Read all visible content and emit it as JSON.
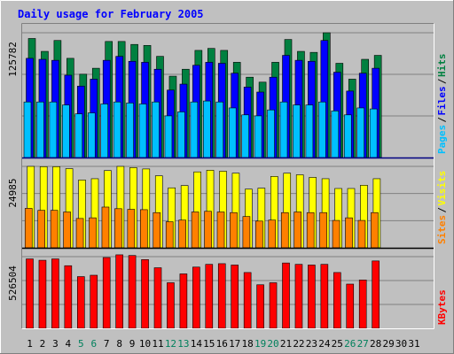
{
  "chart_data": {
    "type": "bar",
    "title": "Daily usage for February 2005",
    "days": [
      "1",
      "2",
      "3",
      "4",
      "5",
      "6",
      "7",
      "8",
      "9",
      "10",
      "11",
      "12",
      "13",
      "14",
      "15",
      "16",
      "17",
      "18",
      "19",
      "20",
      "21",
      "22",
      "23",
      "24",
      "25",
      "26",
      "27",
      "28",
      "29",
      "30",
      "31"
    ],
    "weekend_days": [
      "5",
      "6",
      "12",
      "13",
      "19",
      "20",
      "26",
      "27"
    ],
    "panels": [
      {
        "id": "hits-files-pages",
        "max_label": "125782",
        "ymax": 125782,
        "legend": [
          {
            "name": "Pages",
            "color": "#00c0ff"
          },
          {
            "name": "Files",
            "color": "#0000ff"
          },
          {
            "name": "Hits",
            "color": "#008040"
          }
        ],
        "separator_color": "#000080",
        "series": [
          {
            "name": "Hits",
            "color": "#008040",
            "values": [
              120000,
              107000,
              118000,
              100000,
              84000,
              90000,
              117000,
              117000,
              114000,
              113000,
              102000,
              82000,
              89000,
              108000,
              110000,
              108000,
              96000,
              81000,
              76000,
              96000,
              119000,
              107000,
              106000,
              125782,
              95000,
              79000,
              99000,
              103000
            ]
          },
          {
            "name": "Files",
            "color": "#0000ff",
            "values": [
              100000,
              99000,
              98000,
              83000,
              72000,
              79000,
              98000,
              102000,
              97000,
              96000,
              89000,
              68000,
              74000,
              93000,
              96000,
              95000,
              85000,
              71000,
              66000,
              81000,
              103000,
              98000,
              97000,
              118000,
              86000,
              67000,
              85000,
              90000
            ]
          },
          {
            "name": "Pages",
            "color": "#00c0ff",
            "values": [
              56000,
              56000,
              56000,
              53000,
              44000,
              45000,
              54000,
              56000,
              55000,
              54000,
              56000,
              42000,
              46000,
              56000,
              57000,
              56000,
              50000,
              43000,
              42000,
              48000,
              56000,
              53000,
              53000,
              56000,
              47000,
              43000,
              50000,
              49000
            ]
          }
        ]
      },
      {
        "id": "visits-sites",
        "max_label": "24985",
        "ymax": 24985,
        "legend": [
          {
            "name": "Sites",
            "color": "#ff8000"
          },
          {
            "name": "Visits",
            "color": "#ffff00"
          }
        ],
        "separator_color": "#000000",
        "series": [
          {
            "name": "Visits",
            "color": "#ffff00",
            "values": [
              24985,
              24900,
              24900,
              24300,
              20800,
              21200,
              23700,
              24985,
              24600,
              24200,
              22100,
              18400,
              19100,
              23300,
              23800,
              23500,
              22900,
              18000,
              18300,
              21900,
              22900,
              22400,
              21600,
              21200,
              18200,
              18200,
              19200,
              21200
            ]
          },
          {
            "name": "Sites",
            "color": "#ff8000",
            "values": [
              12100,
              11500,
              11500,
              11000,
              9000,
              9200,
              12500,
              12000,
              11800,
              11700,
              10800,
              8000,
              8500,
              11000,
              11200,
              11000,
              10800,
              9600,
              8200,
              8500,
              10800,
              11000,
              10800,
              10800,
              8400,
              9200,
              8400,
              10800
            ]
          }
        ]
      },
      {
        "id": "kbytes",
        "max_label": "526504",
        "ymax": 526504,
        "legend": [
          {
            "name": "KBytes",
            "color": "#ff0000"
          }
        ],
        "separator_color": "#000000",
        "series": [
          {
            "name": "KBytes",
            "color": "#ff0000",
            "values": [
              510000,
              500000,
              510000,
              460000,
              380000,
              390000,
              520000,
              540000,
              535000,
              505000,
              445000,
              335000,
              400000,
              450000,
              470000,
              475000,
              465000,
              410000,
              320000,
              335000,
              480000,
              470000,
              465000,
              470000,
              410000,
              325000,
              355000,
              495000
            ]
          }
        ]
      }
    ]
  }
}
